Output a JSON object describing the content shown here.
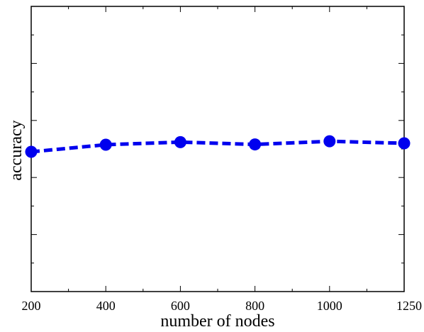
{
  "chart_data": {
    "type": "line",
    "xlabel": "number of nodes",
    "ylabel": "accuracy",
    "categories": [
      "200",
      "400",
      "600",
      "800",
      "1000",
      "1250"
    ],
    "y_tick_labels": [],
    "ylim": [
      0,
      1
    ],
    "series": [
      {
        "values": [
          0.49,
          0.515,
          0.524,
          0.516,
          0.527,
          0.52
        ],
        "color": "#0000ee",
        "line_style": "dashed",
        "marker": "circle"
      }
    ],
    "grid": false,
    "legend": "none"
  }
}
